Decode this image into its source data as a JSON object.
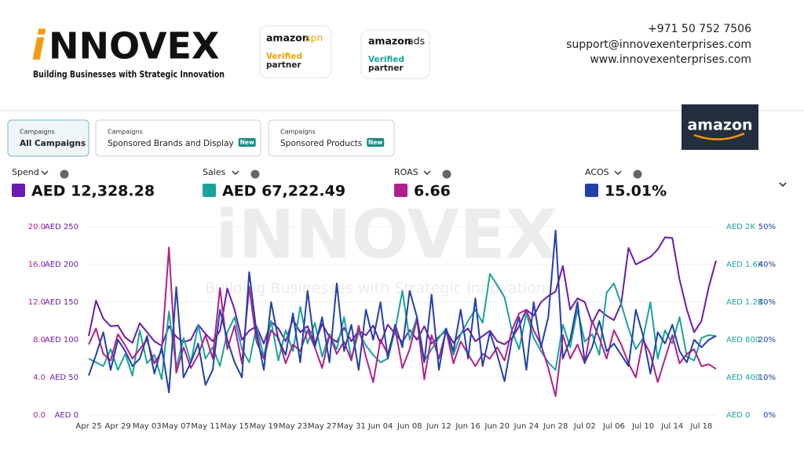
{
  "header": {
    "logo_prefix": "i",
    "logo_name": "NNOVEX",
    "tagline": "Building Businesses with Strategic Innovation",
    "badges": [
      {
        "brand": "amazon",
        "product": "spn",
        "status": "Verified",
        "label": "partner"
      },
      {
        "brand": "amazon",
        "product": "ads",
        "status": "Verified",
        "label": "partner"
      }
    ],
    "contact": {
      "phone": "+971 50 752 7506",
      "email": "support@innovexenterprises.com",
      "website": "www.innovexenterprises.com"
    }
  },
  "tabs": [
    {
      "kicker": "Campaigns",
      "label": "All Campaigns"
    },
    {
      "kicker": "Campaigns",
      "label": "Sponsored Brands and Display",
      "badge": "New"
    },
    {
      "kicker": "Campaigns",
      "label": "Sponsored Products",
      "badge": "New"
    }
  ],
  "brand_box": "amazon",
  "watermark": {
    "title": "iNNOVEX",
    "subtitle": "Building Businesses with Strategic Innovation"
  },
  "chart_data": {
    "type": "line",
    "grid": true,
    "categories": [
      "Apr 25",
      null,
      null,
      null,
      "Apr 29",
      null,
      null,
      null,
      "May 03",
      null,
      null,
      null,
      "May 07",
      null,
      null,
      null,
      "May 11",
      null,
      null,
      null,
      "May 15",
      null,
      null,
      null,
      "May 19",
      null,
      null,
      null,
      "May 23",
      null,
      null,
      null,
      "May 27",
      null,
      null,
      null,
      "May 31",
      null,
      null,
      null,
      "Jun 04",
      null,
      null,
      null,
      "Jun 08",
      null,
      null,
      null,
      "Jun 12",
      null,
      null,
      null,
      "Jun 16",
      null,
      null,
      null,
      "Jun 20",
      null,
      null,
      null,
      "Jun 24",
      null,
      null,
      null,
      "Jun 28",
      null,
      null,
      null,
      "Jul 02",
      null,
      null,
      null,
      "Jul 06",
      null,
      null,
      null,
      "Jul 10",
      null,
      null,
      null,
      "Jul 14",
      null,
      null,
      null,
      "Jul 18",
      null,
      null
    ],
    "series": [
      {
        "name": "Spend",
        "total": "AED 12,328.28",
        "color": "#6a1bb0",
        "axis": "left-inner",
        "ylim": [
          0,
          250
        ],
        "yticks": [
          {
            "value": 0,
            "label": "AED 0"
          },
          {
            "value": 50,
            "label": "AED 50"
          },
          {
            "value": 100,
            "label": "AED 100"
          },
          {
            "value": 150,
            "label": "AED 150"
          },
          {
            "value": 200,
            "label": "AED 200"
          },
          {
            "value": 250,
            "label": "AED 250"
          }
        ],
        "values": [
          105,
          152,
          128,
          118,
          119,
          103,
          96,
          122,
          110,
          98,
          92,
          118,
          104,
          97,
          100,
          120,
          108,
          98,
          112,
          168,
          140,
          100,
          112,
          118,
          95,
          124,
          115,
          98,
          127,
          110,
          118,
          95,
          121,
          104,
          97,
          116,
          98,
          112,
          106,
          119,
          95,
          120,
          108,
          97,
          113,
          100,
          118,
          95,
          104,
          112,
          96,
          108,
          115,
          98,
          105,
          112,
          98,
          94,
          102,
          118,
          140,
          132,
          150,
          158,
          164,
          198,
          140,
          155,
          150,
          122,
          140,
          132,
          126,
          148,
          222,
          200,
          205,
          210,
          220,
          236,
          235,
          180,
          140,
          110,
          125,
          170,
          205
        ]
      },
      {
        "name": "Sales",
        "total": "AED 67,222.49",
        "color": "#1aa39a",
        "axis": "right-inner",
        "ylim": [
          0,
          2000
        ],
        "yticks": [
          {
            "value": 0,
            "label": "AED 0"
          },
          {
            "value": 400,
            "label": "AED 400"
          },
          {
            "value": 800,
            "label": "AED 800"
          },
          {
            "value": 1200,
            "label": "AED 1.2K"
          },
          {
            "value": 1600,
            "label": "AED 1.6K"
          },
          {
            "value": 2000,
            "label": "AED 2K"
          }
        ],
        "values": [
          600,
          560,
          520,
          700,
          480,
          650,
          420,
          900,
          550,
          640,
          380,
          1100,
          500,
          820,
          560,
          960,
          600,
          720,
          520,
          880,
          1040,
          700,
          560,
          940,
          620,
          1000,
          580,
          900,
          680,
          1150,
          760,
          980,
          620,
          860,
          700,
          1040,
          600,
          880,
          740,
          640,
          560,
          600,
          900,
          1320,
          800,
          1040,
          580,
          700,
          820,
          920,
          640,
          860,
          1000,
          1120,
          980,
          1500,
          1380,
          1250,
          900,
          700,
          1080,
          820,
          680,
          560,
          480,
          960,
          720,
          1120,
          780,
          860,
          640,
          1300,
          1400,
          1180,
          920,
          700,
          820,
          1200,
          600,
          900,
          760,
          1040,
          620,
          580,
          820,
          850,
          840
        ]
      },
      {
        "name": "ROAS",
        "total": "6.66",
        "color": "#b0208c",
        "axis": "left-outer",
        "ylim": [
          0,
          20
        ],
        "yticks": [
          {
            "value": 0,
            "label": "0.0"
          },
          {
            "value": 4,
            "label": "4.0"
          },
          {
            "value": 8,
            "label": "8.0"
          },
          {
            "value": 12,
            "label": "12.0"
          },
          {
            "value": 16,
            "label": "16.0"
          },
          {
            "value": 20,
            "label": "20.0"
          }
        ],
        "values": [
          7.5,
          9.2,
          6.5,
          5.8,
          8.6,
          7.4,
          6.0,
          7.0,
          8.0,
          5.5,
          6.8,
          17.8,
          4.5,
          7.2,
          5.0,
          6.4,
          8.5,
          6.0,
          13.5,
          7.0,
          9.5,
          5.5,
          13.6,
          7.8,
          6.0,
          9.0,
          8.2,
          5.5,
          7.5,
          6.8,
          9.0,
          7.2,
          5.0,
          8.5,
          6.5,
          7.8,
          5.8,
          9.5,
          6.2,
          3.5,
          8.0,
          6.5,
          9.2,
          5.0,
          7.0,
          10.2,
          3.8,
          8.5,
          6.0,
          9.0,
          5.5,
          7.8,
          6.5,
          5.2,
          6.5,
          6.0,
          7.2,
          5.8,
          9.0,
          10.8,
          11.2,
          9.0,
          7.5,
          5.0,
          2.0,
          8.5,
          6.0,
          7.5,
          5.5,
          10.0,
          8.2,
          6.0,
          9.0,
          7.5,
          5.5,
          4.0,
          8.0,
          6.5,
          3.5,
          6.0,
          8.5,
          5.5,
          6.5,
          7.0,
          5.2,
          5.4,
          4.9
        ]
      },
      {
        "name": "ACOS",
        "total": "15.01%",
        "color": "#2340a8",
        "axis": "right-outer",
        "ylim": [
          0,
          50
        ],
        "yticks": [
          {
            "value": 0,
            "label": "0%"
          },
          {
            "value": 10,
            "label": "10%"
          },
          {
            "value": 20,
            "label": "20%"
          },
          {
            "value": 30,
            "label": "30%"
          },
          {
            "value": 40,
            "label": "40%"
          },
          {
            "value": 50,
            "label": "50%"
          }
        ],
        "values": [
          10.5,
          16,
          22,
          12,
          20,
          17,
          13,
          15,
          21,
          11,
          18,
          6,
          34,
          10,
          14,
          19,
          8,
          12,
          28,
          20,
          14,
          10,
          38,
          22,
          12,
          30,
          20,
          16,
          27,
          14,
          33,
          18,
          26,
          14,
          35,
          17,
          24,
          12,
          28,
          20,
          30,
          15,
          24,
          18,
          33,
          26,
          14,
          32,
          12,
          23,
          17,
          28,
          15,
          31,
          13,
          22,
          16,
          9,
          20,
          26,
          12,
          30,
          18,
          26,
          49,
          15,
          20,
          30,
          14,
          18,
          25,
          17,
          19,
          16,
          13,
          28,
          21,
          11,
          22,
          19,
          24,
          17,
          14,
          20,
          18,
          20,
          21
        ]
      }
    ]
  }
}
